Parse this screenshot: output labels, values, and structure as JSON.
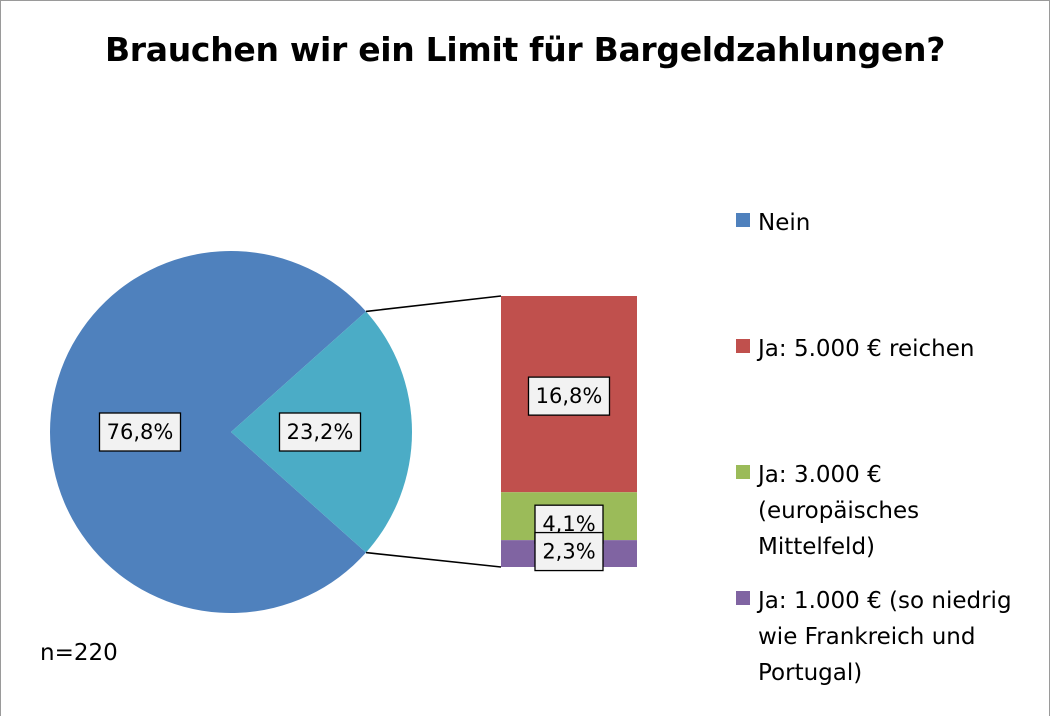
{
  "chart_data": {
    "type": "pie",
    "subtype": "bar-of-pie",
    "title": "Brauchen wir ein Limit für Bargeldzahlungen?",
    "note": "n=220",
    "pie": {
      "slices": [
        {
          "label": "Nein",
          "value": 76.8,
          "display": "76,8%",
          "color": "#4f81bd"
        },
        {
          "label": "Ja",
          "value": 23.2,
          "display": "23,2%",
          "color": "#4bacc6"
        }
      ]
    },
    "breakdown": {
      "parent": "Ja",
      "segments": [
        {
          "label": "Ja: 5.000 € reichen",
          "value": 16.8,
          "display": "16,8%",
          "color": "#c0504d"
        },
        {
          "label": "Ja: 3.000 € (europäisches Mittelfeld)",
          "value": 4.1,
          "display": "4,1%",
          "color": "#9bbb59"
        },
        {
          "label": "Ja: 1.000 € (so niedrig wie Frankreich und Portugal)",
          "value": 2.3,
          "display": "2,3%",
          "color": "#8064a2"
        }
      ]
    },
    "legend": {
      "position": "right",
      "entries": [
        {
          "label": "Nein",
          "color": "#4f81bd"
        },
        {
          "label": "Ja: 5.000 € reichen",
          "color": "#c0504d"
        },
        {
          "label": "Ja: 3.000 € (europäisches Mittelfeld)",
          "color": "#9bbb59"
        },
        {
          "label": "Ja: 1.000 € (so niedrig wie Frankreich und Portugal)",
          "color": "#8064a2"
        }
      ]
    }
  }
}
